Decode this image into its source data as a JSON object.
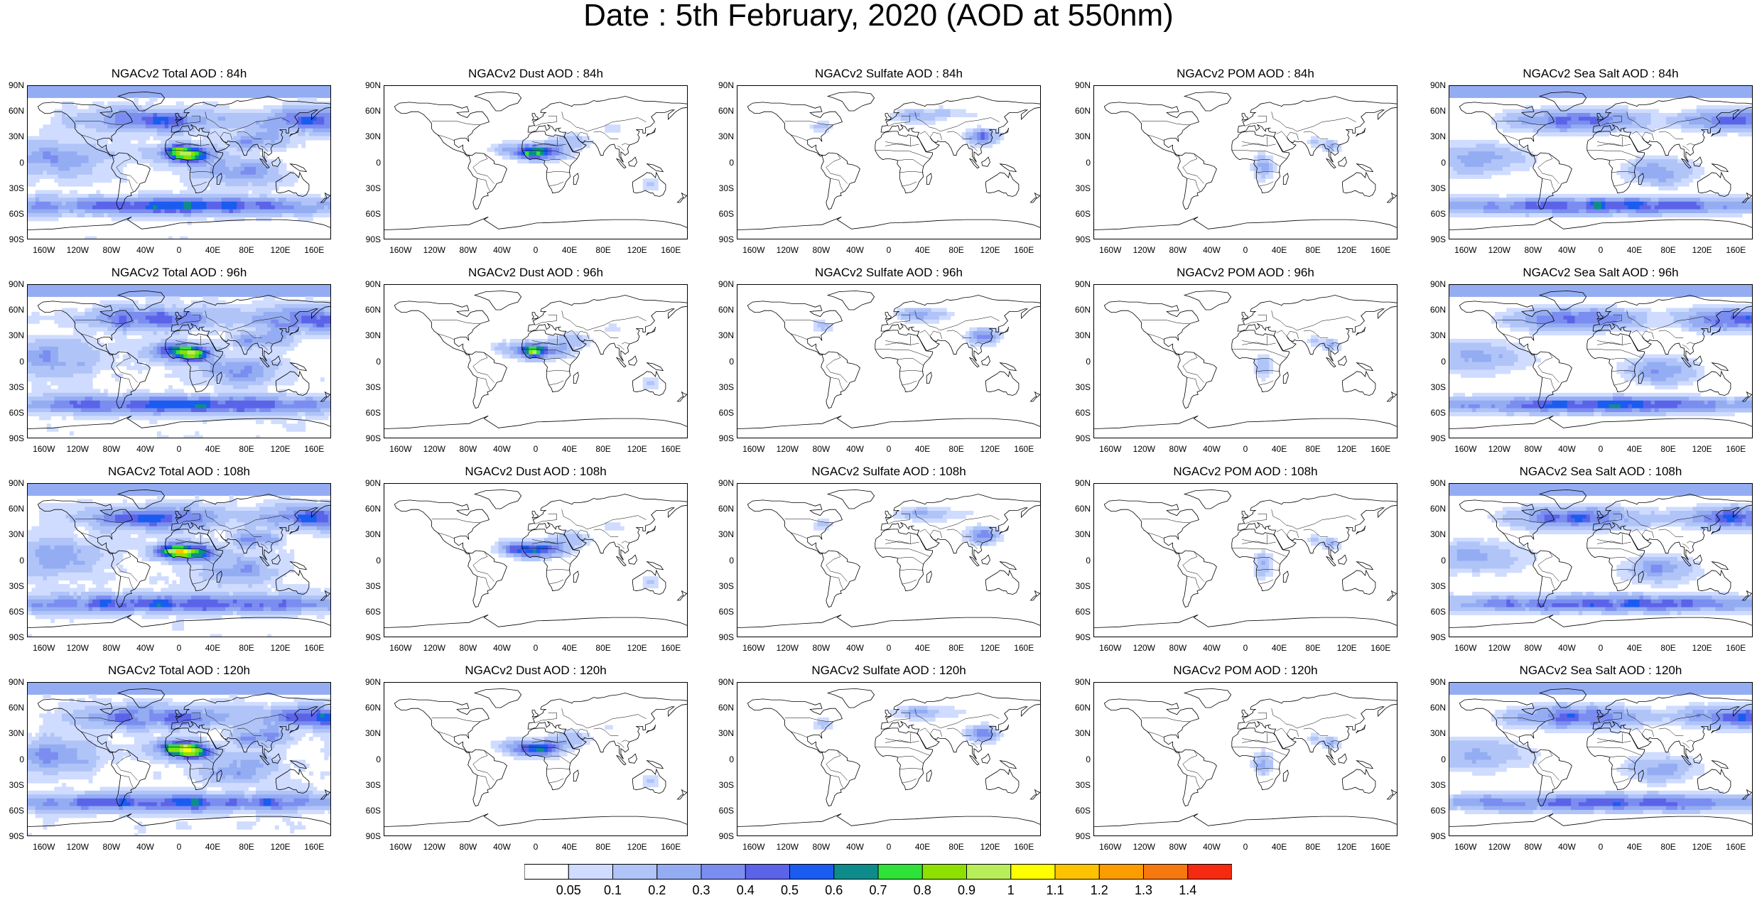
{
  "title": "Date : 5th February, 2020 (AOD at 550nm)",
  "panels": [
    [
      "NGACv2 Total AOD : 84h",
      "NGACv2 Dust AOD : 84h",
      "NGACv2 Sulfate AOD : 84h",
      "NGACv2 POM AOD : 84h",
      "NGACv2 Sea Salt AOD : 84h"
    ],
    [
      "NGACv2 Total AOD : 96h",
      "NGACv2 Dust AOD : 96h",
      "NGACv2 Sulfate AOD : 96h",
      "NGACv2 POM AOD : 96h",
      "NGACv2 Sea Salt AOD : 96h"
    ],
    [
      "NGACv2 Total AOD : 108h",
      "NGACv2 Dust AOD : 108h",
      "NGACv2 Sulfate AOD : 108h",
      "NGACv2 POM AOD : 108h",
      "NGACv2 Sea Salt AOD : 108h"
    ],
    [
      "NGACv2 Total AOD : 120h",
      "NGACv2 Dust AOD : 120h",
      "NGACv2 Sulfate AOD : 120h",
      "NGACv2 POM AOD : 120h",
      "NGACv2 Sea Salt  AOD : 120h"
    ]
  ],
  "lat_ticks": [
    "90N",
    "60N",
    "30N",
    "0",
    "30S",
    "60S",
    "90S"
  ],
  "lon_ticks": [
    "160W",
    "120W",
    "80W",
    "40W",
    "0",
    "40E",
    "80E",
    "120E",
    "160E"
  ],
  "colorbar": {
    "labels": [
      "0.05",
      "0.1",
      "0.2",
      "0.3",
      "0.4",
      "0.5",
      "0.6",
      "0.7",
      "0.8",
      "0.9",
      "1",
      "1.1",
      "1.2",
      "1.3",
      "1.4"
    ],
    "colors": [
      "#ffffff",
      "#cfdcff",
      "#b0c4f8",
      "#94acf2",
      "#7b8df0",
      "#5b64e8",
      "#1a5cf0",
      "#0e8c8c",
      "#2ee23a",
      "#8de000",
      "#b8ee5a",
      "#ffff00",
      "#fdc300",
      "#fb9c00",
      "#f87810",
      "#f52a10"
    ]
  }
}
